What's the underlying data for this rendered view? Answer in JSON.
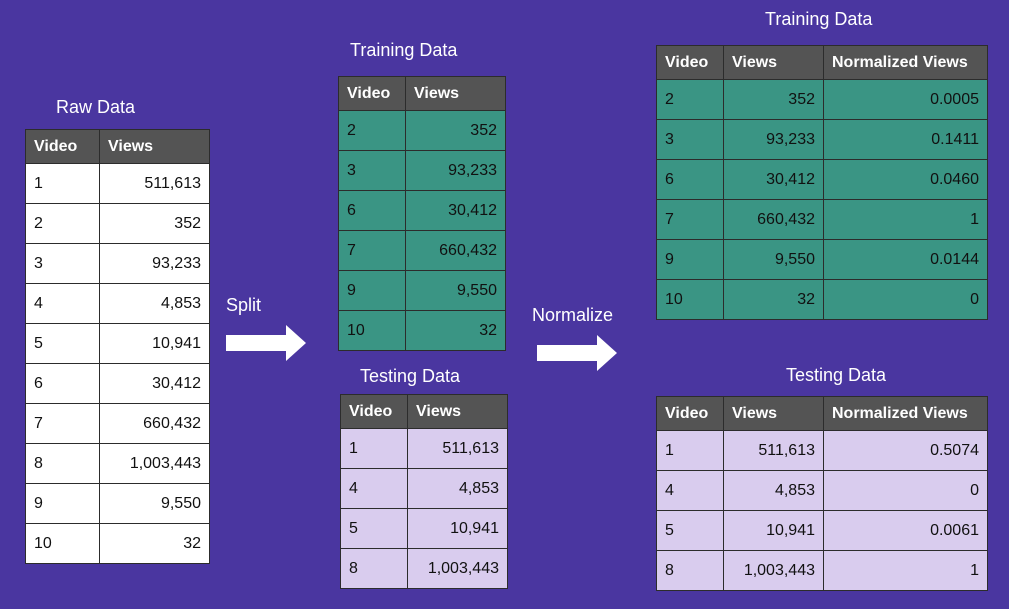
{
  "raw": {
    "title": "Raw Data",
    "headers": [
      "Video",
      "Views"
    ],
    "rows": [
      [
        "1",
        "511,613"
      ],
      [
        "2",
        "352"
      ],
      [
        "3",
        "93,233"
      ],
      [
        "4",
        "4,853"
      ],
      [
        "5",
        "10,941"
      ],
      [
        "6",
        "30,412"
      ],
      [
        "7",
        "660,432"
      ],
      [
        "8",
        "1,003,443"
      ],
      [
        "9",
        "9,550"
      ],
      [
        "10",
        "32"
      ]
    ]
  },
  "split": {
    "label": "Split",
    "training": {
      "title": "Training Data",
      "headers": [
        "Video",
        "Views"
      ],
      "rows": [
        [
          "2",
          "352"
        ],
        [
          "3",
          "93,233"
        ],
        [
          "6",
          "30,412"
        ],
        [
          "7",
          "660,432"
        ],
        [
          "9",
          "9,550"
        ],
        [
          "10",
          "32"
        ]
      ]
    },
    "testing": {
      "title": "Testing Data",
      "headers": [
        "Video",
        "Views"
      ],
      "rows": [
        [
          "1",
          "511,613"
        ],
        [
          "4",
          "4,853"
        ],
        [
          "5",
          "10,941"
        ],
        [
          "8",
          "1,003,443"
        ]
      ]
    }
  },
  "normalize": {
    "label": "Normalize",
    "training": {
      "title": "Training Data",
      "headers": [
        "Video",
        "Views",
        "Normalized Views"
      ],
      "rows": [
        [
          "2",
          "352",
          "0.0005"
        ],
        [
          "3",
          "93,233",
          "0.1411"
        ],
        [
          "6",
          "30,412",
          "0.0460"
        ],
        [
          "7",
          "660,432",
          "1"
        ],
        [
          "9",
          "9,550",
          "0.0144"
        ],
        [
          "10",
          "32",
          "0"
        ]
      ]
    },
    "testing": {
      "title": "Testing Data",
      "headers": [
        "Video",
        "Views",
        "Normalized Views"
      ],
      "rows": [
        [
          "1",
          "511,613",
          "0.5074"
        ],
        [
          "4",
          "4,853",
          "0"
        ],
        [
          "5",
          "10,941",
          "0.0061"
        ],
        [
          "8",
          "1,003,443",
          "1"
        ]
      ]
    }
  },
  "colors": {
    "background": "#4a36a0",
    "header": "#545454",
    "raw_cell": "#ffffff",
    "training_cell": "#3a9584",
    "testing_cell": "#d9ccee",
    "arrow": "#ffffff"
  }
}
